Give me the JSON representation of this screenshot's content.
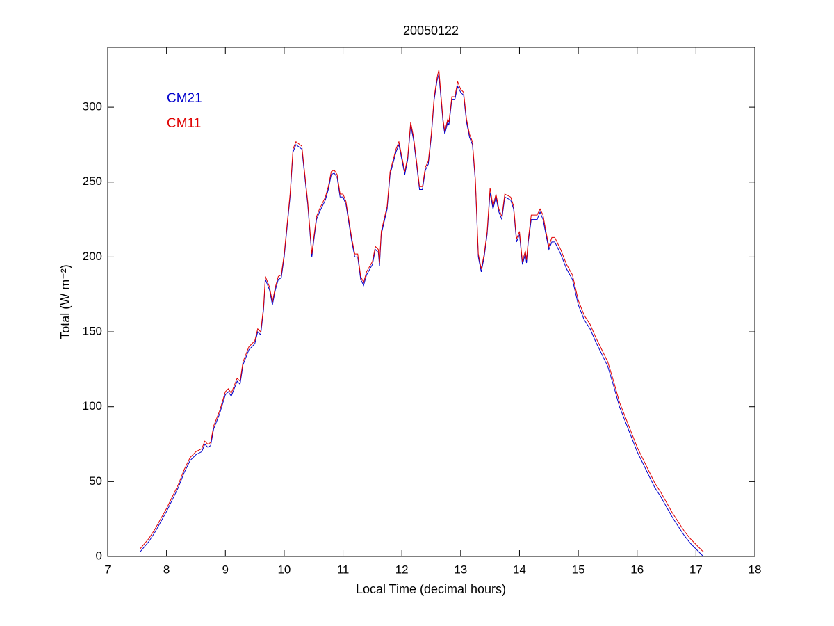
{
  "chart_data": {
    "type": "line",
    "title": "20050122",
    "xlabel": "Local Time (decimal hours)",
    "ylabel": "Total (W m⁻²)",
    "xlim": [
      7,
      18
    ],
    "ylim": [
      0,
      340
    ],
    "xticks": [
      7,
      8,
      9,
      10,
      11,
      12,
      13,
      14,
      15,
      16,
      17,
      18
    ],
    "yticks": [
      0,
      50,
      100,
      150,
      200,
      250,
      300
    ],
    "legend": "upper left",
    "x": [
      7.55,
      7.7,
      7.8,
      7.9,
      8.0,
      8.1,
      8.2,
      8.3,
      8.4,
      8.5,
      8.6,
      8.65,
      8.7,
      8.75,
      8.8,
      8.9,
      9.0,
      9.05,
      9.1,
      9.2,
      9.25,
      9.3,
      9.4,
      9.5,
      9.55,
      9.6,
      9.65,
      9.68,
      9.75,
      9.8,
      9.85,
      9.9,
      9.95,
      10.0,
      10.1,
      10.15,
      10.2,
      10.3,
      10.4,
      10.45,
      10.47,
      10.5,
      10.55,
      10.6,
      10.7,
      10.75,
      10.8,
      10.85,
      10.9,
      10.95,
      11.0,
      11.05,
      11.15,
      11.2,
      11.25,
      11.3,
      11.35,
      11.4,
      11.5,
      11.55,
      11.6,
      11.62,
      11.65,
      11.75,
      11.8,
      11.9,
      11.95,
      12.0,
      12.05,
      12.1,
      12.15,
      12.2,
      12.25,
      12.3,
      12.35,
      12.4,
      12.45,
      12.5,
      12.55,
      12.6,
      12.63,
      12.7,
      12.73,
      12.78,
      12.8,
      12.85,
      12.9,
      12.95,
      13.0,
      13.05,
      13.1,
      13.15,
      13.2,
      13.25,
      13.3,
      13.35,
      13.4,
      13.45,
      13.5,
      13.55,
      13.6,
      13.65,
      13.7,
      13.75,
      13.85,
      13.9,
      13.95,
      14.0,
      14.05,
      14.1,
      14.12,
      14.15,
      14.2,
      14.3,
      14.35,
      14.4,
      14.45,
      14.5,
      14.55,
      14.6,
      14.7,
      14.8,
      14.9,
      15.0,
      15.1,
      15.2,
      15.3,
      15.4,
      15.5,
      15.6,
      15.7,
      15.8,
      15.9,
      16.0,
      16.1,
      16.2,
      16.3,
      16.4,
      16.5,
      16.6,
      16.7,
      16.8,
      16.9,
      17.0,
      17.1,
      17.13
    ],
    "series": [
      {
        "name": "CM21",
        "color": "#0000cc",
        "values": [
          3,
          10,
          16,
          23,
          30,
          38,
          46,
          56,
          64,
          68,
          70,
          75,
          73,
          74,
          85,
          95,
          108,
          110,
          107,
          117,
          115,
          128,
          138,
          142,
          150,
          148,
          165,
          185,
          178,
          168,
          178,
          185,
          186,
          200,
          240,
          270,
          275,
          272,
          235,
          210,
          200,
          210,
          225,
          230,
          238,
          245,
          255,
          256,
          253,
          240,
          240,
          235,
          210,
          200,
          200,
          185,
          181,
          188,
          195,
          205,
          203,
          194,
          215,
          232,
          255,
          270,
          275,
          265,
          255,
          265,
          288,
          278,
          262,
          245,
          245,
          258,
          262,
          280,
          305,
          318,
          322,
          290,
          282,
          290,
          288,
          305,
          305,
          314,
          310,
          308,
          290,
          280,
          275,
          250,
          200,
          190,
          200,
          215,
          243,
          232,
          240,
          230,
          225,
          240,
          238,
          232,
          210,
          215,
          195,
          202,
          196,
          210,
          225,
          225,
          230,
          225,
          215,
          205,
          210,
          210,
          202,
          192,
          185,
          168,
          158,
          152,
          143,
          135,
          127,
          114,
          100,
          90,
          80,
          70,
          62,
          54,
          46,
          40,
          33,
          26,
          20,
          14,
          9,
          5,
          1,
          0
        ]
      },
      {
        "name": "CM11",
        "color": "#e00000",
        "values": [
          5,
          12,
          18,
          25,
          32,
          40,
          48,
          58,
          66,
          70,
          72,
          77,
          75,
          76,
          87,
          97,
          110,
          112,
          109,
          119,
          117,
          130,
          140,
          144,
          152,
          150,
          167,
          187,
          180,
          170,
          180,
          187,
          188,
          202,
          242,
          272,
          277,
          274,
          237,
          212,
          202,
          212,
          227,
          232,
          240,
          247,
          257,
          258,
          255,
          242,
          242,
          237,
          212,
          202,
          202,
          187,
          183,
          190,
          197,
          207,
          205,
          196,
          217,
          234,
          257,
          272,
          277,
          267,
          257,
          267,
          290,
          280,
          264,
          247,
          247,
          260,
          264,
          282,
          307,
          320,
          325,
          292,
          284,
          292,
          290,
          307,
          307,
          317,
          312,
          310,
          292,
          282,
          277,
          252,
          202,
          192,
          202,
          217,
          246,
          234,
          242,
          232,
          227,
          242,
          240,
          234,
          212,
          217,
          197,
          204,
          198,
          212,
          228,
          228,
          232,
          228,
          217,
          207,
          213,
          213,
          205,
          195,
          188,
          171,
          161,
          155,
          146,
          138,
          130,
          117,
          103,
          93,
          83,
          73,
          65,
          57,
          49,
          43,
          36,
          29,
          23,
          17,
          12,
          8,
          4,
          3
        ]
      }
    ]
  }
}
